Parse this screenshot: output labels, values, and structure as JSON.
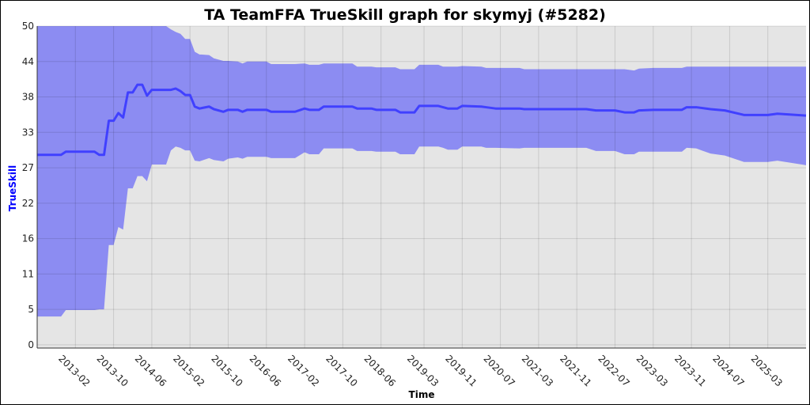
{
  "chart_data": {
    "type": "area",
    "title": "TA TeamFFA TrueSkill graph for skymyj (#5282)",
    "xlabel": "Time",
    "ylabel": "TrueSkill",
    "xlim": [
      "2012-06",
      "2025-11"
    ],
    "ylim": [
      -0.5,
      49.5
    ],
    "grid": true,
    "legend": "none",
    "colors": {
      "band": "#8c8cf2",
      "line": "#4040ff",
      "background": "#e5e5e5",
      "ylabel": "#0000ff"
    },
    "x_ticks": [
      "2013-02",
      "2013-10",
      "2014-06",
      "2015-02",
      "2015-10",
      "2016-06",
      "2017-02",
      "2017-10",
      "2018-06",
      "2019-03",
      "2019-11",
      "2020-07",
      "2021-03",
      "2021-11",
      "2022-07",
      "2023-03",
      "2023-11",
      "2024-07",
      "2025-03"
    ],
    "y_ticks": [
      {
        "value": 0,
        "label": "0"
      },
      {
        "value": 5.5,
        "label": "5"
      },
      {
        "value": 11,
        "label": "11"
      },
      {
        "value": 16.5,
        "label": "16"
      },
      {
        "value": 22,
        "label": "22"
      },
      {
        "value": 27.5,
        "label": "27"
      },
      {
        "value": 33,
        "label": "33"
      },
      {
        "value": 38.5,
        "label": "38"
      },
      {
        "value": 44,
        "label": "44"
      },
      {
        "value": 49.5,
        "label": "50"
      }
    ],
    "columns": [
      "date",
      "mean",
      "lower",
      "upper"
    ],
    "points": [
      [
        "2012-06",
        29.5,
        4.4,
        49.5
      ],
      [
        "2012-11",
        29.5,
        4.4,
        49.5
      ],
      [
        "2012-12",
        30.0,
        5.4,
        49.5
      ],
      [
        "2013-06",
        30.0,
        5.4,
        49.5
      ],
      [
        "2013-07",
        29.5,
        5.5,
        49.5
      ],
      [
        "2013-08",
        29.5,
        5.5,
        49.5
      ],
      [
        "2013-09",
        34.8,
        15.5,
        49.5
      ],
      [
        "2013-10",
        34.8,
        15.5,
        49.5
      ],
      [
        "2013-11",
        36.0,
        18.3,
        49.5
      ],
      [
        "2013-12",
        35.3,
        17.9,
        49.5
      ],
      [
        "2014-01",
        39.2,
        24.3,
        49.5
      ],
      [
        "2014-02",
        39.2,
        24.3,
        49.5
      ],
      [
        "2014-03",
        40.4,
        26.2,
        49.5
      ],
      [
        "2014-04",
        40.4,
        26.2,
        49.5
      ],
      [
        "2014-05",
        38.7,
        25.4,
        49.5
      ],
      [
        "2014-06",
        39.6,
        28.0,
        49.5
      ],
      [
        "2014-09",
        39.6,
        28.0,
        49.5
      ],
      [
        "2014-10",
        39.6,
        30.2,
        49.0
      ],
      [
        "2014-11",
        39.8,
        30.8,
        48.6
      ],
      [
        "2014-12",
        39.4,
        30.6,
        48.3
      ],
      [
        "2015-01",
        38.8,
        30.2,
        47.5
      ],
      [
        "2015-02",
        38.8,
        30.2,
        47.5
      ],
      [
        "2015-03",
        37.0,
        28.6,
        45.5
      ],
      [
        "2015-04",
        36.7,
        28.5,
        45.1
      ],
      [
        "2015-06",
        37.0,
        29.0,
        45.0
      ],
      [
        "2015-07",
        36.6,
        28.7,
        44.5
      ],
      [
        "2015-09",
        36.2,
        28.5,
        44.1
      ],
      [
        "2015-10",
        36.5,
        28.9,
        44.1
      ],
      [
        "2015-12",
        36.5,
        29.1,
        44.0
      ],
      [
        "2016-01",
        36.2,
        28.9,
        43.7
      ],
      [
        "2016-02",
        36.5,
        29.2,
        44.0
      ],
      [
        "2016-06",
        36.5,
        29.2,
        44.0
      ],
      [
        "2016-07",
        36.2,
        29.0,
        43.6
      ],
      [
        "2016-12",
        36.2,
        29.0,
        43.6
      ],
      [
        "2017-02",
        36.7,
        29.9,
        43.7
      ],
      [
        "2017-03",
        36.5,
        29.6,
        43.5
      ],
      [
        "2017-05",
        36.5,
        29.6,
        43.5
      ],
      [
        "2017-06",
        37.0,
        30.5,
        43.7
      ],
      [
        "2017-12",
        37.0,
        30.5,
        43.7
      ],
      [
        "2018-01",
        36.7,
        30.1,
        43.2
      ],
      [
        "2018-04",
        36.7,
        30.1,
        43.2
      ],
      [
        "2018-05",
        36.5,
        30.0,
        43.1
      ],
      [
        "2018-09",
        36.5,
        30.0,
        43.1
      ],
      [
        "2018-10",
        36.1,
        29.6,
        42.8
      ],
      [
        "2019-01",
        36.1,
        29.6,
        42.8
      ],
      [
        "2019-02",
        37.1,
        30.8,
        43.5
      ],
      [
        "2019-06",
        37.1,
        30.8,
        43.5
      ],
      [
        "2019-07",
        36.9,
        30.6,
        43.2
      ],
      [
        "2019-08",
        36.7,
        30.3,
        43.2
      ],
      [
        "2019-10",
        36.7,
        30.3,
        43.2
      ],
      [
        "2019-11",
        37.1,
        30.8,
        43.3
      ],
      [
        "2020-03",
        37.0,
        30.8,
        43.2
      ],
      [
        "2020-04",
        36.9,
        30.6,
        43.0
      ],
      [
        "2020-06",
        36.7,
        30.6,
        43.0
      ],
      [
        "2020-11",
        36.7,
        30.5,
        43.0
      ],
      [
        "2020-12",
        36.6,
        30.6,
        42.8
      ],
      [
        "2022-01",
        36.6,
        30.6,
        42.8
      ],
      [
        "2022-03",
        36.4,
        30.1,
        42.8
      ],
      [
        "2022-07",
        36.4,
        30.1,
        42.8
      ],
      [
        "2022-09",
        36.1,
        29.6,
        42.8
      ],
      [
        "2022-11",
        36.1,
        29.6,
        42.6
      ],
      [
        "2022-12",
        36.4,
        30.0,
        42.9
      ],
      [
        "2023-03",
        36.5,
        30.0,
        43.0
      ],
      [
        "2023-09",
        36.5,
        30.0,
        43.0
      ],
      [
        "2023-10",
        36.9,
        30.6,
        43.2
      ],
      [
        "2023-12",
        36.9,
        30.5,
        43.2
      ],
      [
        "2024-03",
        36.6,
        29.7,
        43.2
      ],
      [
        "2024-06",
        36.4,
        29.4,
        43.2
      ],
      [
        "2024-10",
        35.7,
        28.4,
        43.2
      ],
      [
        "2025-03",
        35.7,
        28.4,
        43.2
      ],
      [
        "2025-05",
        35.9,
        28.6,
        43.2
      ],
      [
        "2025-11",
        35.6,
        27.9,
        43.2
      ]
    ]
  }
}
